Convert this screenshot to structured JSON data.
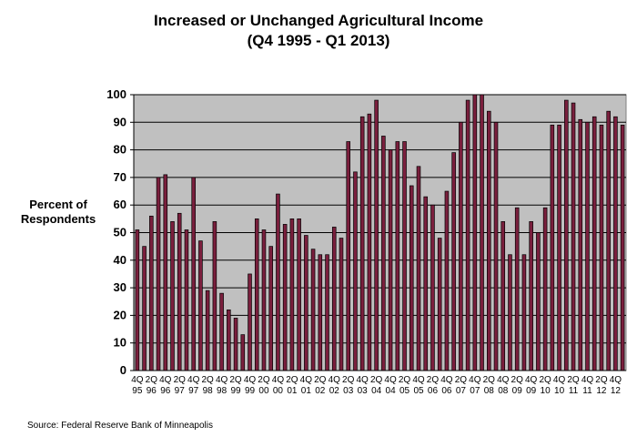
{
  "colors": {
    "plot_bg": "#c0c0c0",
    "bar_fill": "#7a1f3d",
    "bar_stroke": "#000000",
    "grid": "#000000"
  },
  "chart_data": {
    "type": "bar",
    "title": "Increased or Unchanged Agricultural Income",
    "subtitle": "(Q4 1995 - Q1 2013)",
    "ylabel": [
      "Percent of",
      "Respondents"
    ],
    "ylim": [
      0,
      100
    ],
    "yticks": [
      0,
      10,
      20,
      30,
      40,
      50,
      60,
      70,
      80,
      90,
      100
    ],
    "grid": "horizontal",
    "categories": [
      "4Q95",
      "1Q96",
      "2Q96",
      "3Q96",
      "4Q96",
      "1Q97",
      "2Q97",
      "3Q97",
      "4Q97",
      "1Q98",
      "2Q98",
      "3Q98",
      "4Q98",
      "1Q99",
      "2Q99",
      "3Q99",
      "4Q99",
      "1Q00",
      "2Q00",
      "3Q00",
      "4Q00",
      "1Q01",
      "2Q01",
      "3Q01",
      "4Q01",
      "1Q02",
      "2Q02",
      "3Q02",
      "4Q02",
      "1Q03",
      "2Q03",
      "3Q03",
      "4Q03",
      "1Q04",
      "2Q04",
      "3Q04",
      "4Q04",
      "1Q05",
      "2Q05",
      "3Q05",
      "4Q05",
      "1Q06",
      "2Q06",
      "3Q06",
      "4Q06",
      "1Q07",
      "2Q07",
      "3Q07",
      "4Q07",
      "1Q08",
      "2Q08",
      "3Q08",
      "4Q08",
      "1Q09",
      "2Q09",
      "3Q09",
      "4Q09",
      "1Q10",
      "2Q10",
      "3Q10",
      "4Q10",
      "1Q11",
      "2Q11",
      "3Q11",
      "4Q11",
      "1Q12",
      "2Q12",
      "3Q12",
      "4Q12",
      "1Q13"
    ],
    "values": [
      51,
      45,
      56,
      70,
      71,
      54,
      57,
      51,
      70,
      47,
      29,
      54,
      28,
      22,
      19,
      13,
      35,
      55,
      51,
      45,
      64,
      53,
      55,
      55,
      49,
      44,
      42,
      42,
      52,
      48,
      83,
      72,
      92,
      93,
      98,
      85,
      80,
      83,
      83,
      67,
      74,
      63,
      60,
      48,
      65,
      79,
      90,
      98,
      100,
      100,
      94,
      90,
      54,
      42,
      59,
      42,
      54,
      50,
      59,
      89,
      89,
      98,
      97,
      91,
      90,
      92,
      89,
      94,
      92,
      89
    ],
    "xtick_labels": [
      {
        "index": 0,
        "top": "4Q",
        "bottom": "95"
      },
      {
        "index": 2,
        "top": "2Q",
        "bottom": "96"
      },
      {
        "index": 4,
        "top": "4Q",
        "bottom": "96"
      },
      {
        "index": 6,
        "top": "2Q",
        "bottom": "97"
      },
      {
        "index": 8,
        "top": "4Q",
        "bottom": "97"
      },
      {
        "index": 10,
        "top": "2Q",
        "bottom": "98"
      },
      {
        "index": 12,
        "top": "4Q",
        "bottom": "98"
      },
      {
        "index": 14,
        "top": "2Q",
        "bottom": "99"
      },
      {
        "index": 16,
        "top": "4Q",
        "bottom": "99"
      },
      {
        "index": 18,
        "top": "2Q",
        "bottom": "00"
      },
      {
        "index": 20,
        "top": "4Q",
        "bottom": "00"
      },
      {
        "index": 22,
        "top": "2Q",
        "bottom": "01"
      },
      {
        "index": 24,
        "top": "4Q",
        "bottom": "01"
      },
      {
        "index": 26,
        "top": "2Q",
        "bottom": "02"
      },
      {
        "index": 28,
        "top": "4Q",
        "bottom": "02"
      },
      {
        "index": 30,
        "top": "2Q",
        "bottom": "03"
      },
      {
        "index": 32,
        "top": "4Q",
        "bottom": "03"
      },
      {
        "index": 34,
        "top": "2Q",
        "bottom": "04"
      },
      {
        "index": 36,
        "top": "4Q",
        "bottom": "04"
      },
      {
        "index": 38,
        "top": "2Q",
        "bottom": "05"
      },
      {
        "index": 40,
        "top": "4Q",
        "bottom": "05"
      },
      {
        "index": 42,
        "top": "2Q",
        "bottom": "06"
      },
      {
        "index": 44,
        "top": "4Q",
        "bottom": "06"
      },
      {
        "index": 46,
        "top": "2Q",
        "bottom": "07"
      },
      {
        "index": 48,
        "top": "4Q",
        "bottom": "07"
      },
      {
        "index": 50,
        "top": "2Q",
        "bottom": "08"
      },
      {
        "index": 52,
        "top": "4Q",
        "bottom": "08"
      },
      {
        "index": 54,
        "top": "2Q",
        "bottom": "09"
      },
      {
        "index": 56,
        "top": "4Q",
        "bottom": "09"
      },
      {
        "index": 58,
        "top": "2Q",
        "bottom": "10"
      },
      {
        "index": 60,
        "top": "4Q",
        "bottom": "10"
      },
      {
        "index": 62,
        "top": "2Q",
        "bottom": "11"
      },
      {
        "index": 64,
        "top": "4Q",
        "bottom": "11"
      },
      {
        "index": 66,
        "top": "2Q",
        "bottom": "12"
      },
      {
        "index": 68,
        "top": "4Q",
        "bottom": "12"
      }
    ]
  },
  "source": "Source: Federal Reserve Bank of Minneapolis"
}
